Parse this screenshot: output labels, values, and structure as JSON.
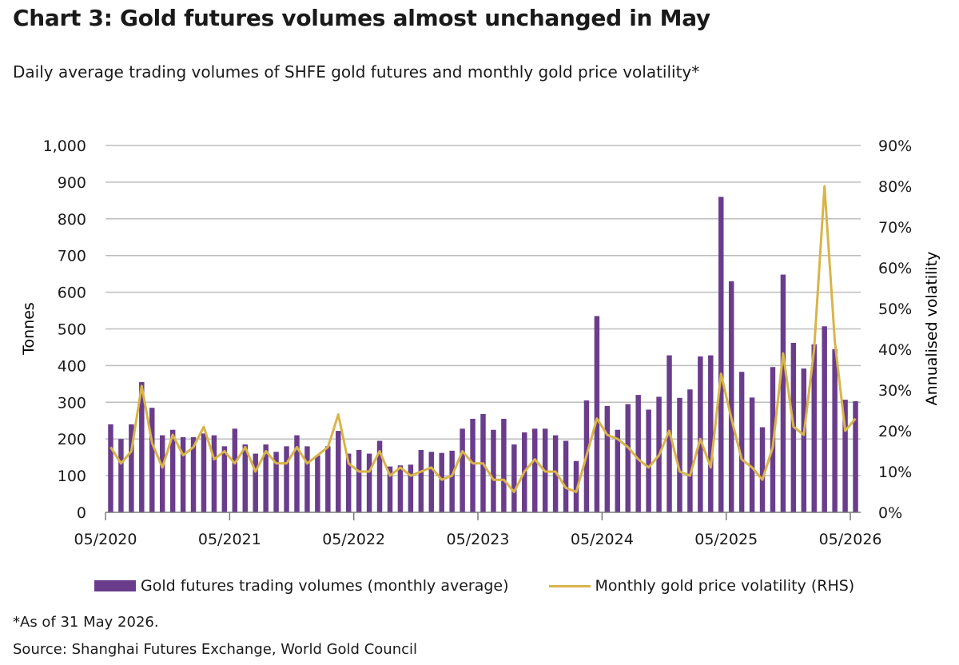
{
  "title": "Chart 3: Gold futures volumes almost unchanged in May",
  "subtitle": "Daily average trading volumes of SHFE gold futures and monthly gold price volatility*",
  "footnote": "*As of 31 May 2026.",
  "source": "Source: Shanghai Futures Exchange, World Gold Council",
  "legend": {
    "bars": "Gold futures trading volumes (monthly average)",
    "line": "Monthly gold price volatility (RHS)"
  },
  "colors": {
    "bar": "#6a3d8c",
    "line": "#d9b44a",
    "grid": "#bdbdbd"
  },
  "chart_data": {
    "type": "bar",
    "ylabel": "Tonnes",
    "y2label": "Annualised volatility",
    "ylim": [
      0,
      1000
    ],
    "y2lim": [
      0,
      90
    ],
    "yticks": [
      "0",
      "100",
      "200",
      "300",
      "400",
      "500",
      "600",
      "700",
      "800",
      "900",
      "1,000"
    ],
    "y2ticks": [
      "0%",
      "10%",
      "20%",
      "30%",
      "40%",
      "50%",
      "60%",
      "70%",
      "80%",
      "90%"
    ],
    "xticks": [
      "05/2020",
      "05/2021",
      "05/2022",
      "05/2023",
      "05/2024",
      "05/2025",
      "05/2026"
    ],
    "grid": true,
    "legend_position": "bottom",
    "series": [
      {
        "name": "Gold futures trading volumes (monthly average)",
        "type": "bar",
        "axis": "left",
        "values": [
          240,
          200,
          240,
          355,
          285,
          210,
          225,
          205,
          205,
          215,
          210,
          180,
          228,
          185,
          160,
          185,
          165,
          180,
          210,
          180,
          155,
          180,
          222,
          160,
          170,
          160,
          195,
          125,
          128,
          130,
          170,
          165,
          162,
          168,
          228,
          255,
          268,
          225,
          255,
          185,
          218,
          228,
          228,
          210,
          195,
          140,
          305,
          535,
          290,
          225,
          295,
          320,
          280,
          315,
          428,
          312,
          335,
          425,
          428,
          860,
          630,
          383,
          313,
          232,
          396,
          648,
          462,
          392,
          458,
          507,
          445,
          307,
          303
        ]
      },
      {
        "name": "Monthly gold price volatility (RHS)",
        "type": "line",
        "axis": "right",
        "values": [
          16,
          12,
          15,
          31,
          17,
          11,
          19,
          14,
          16,
          21,
          13,
          15,
          12,
          16,
          10,
          15,
          12,
          12,
          16,
          12,
          14,
          16,
          24,
          12,
          10,
          10,
          15,
          9,
          11,
          9,
          10,
          11,
          8,
          9,
          15,
          12,
          12,
          8,
          8,
          5,
          10,
          13,
          10,
          10,
          6,
          5,
          14,
          23,
          19,
          18,
          16,
          13,
          11,
          14,
          20,
          10,
          9,
          18,
          11,
          34,
          23,
          13,
          11,
          8,
          16,
          39,
          21,
          19,
          40,
          80,
          42,
          20,
          23
        ]
      }
    ]
  }
}
